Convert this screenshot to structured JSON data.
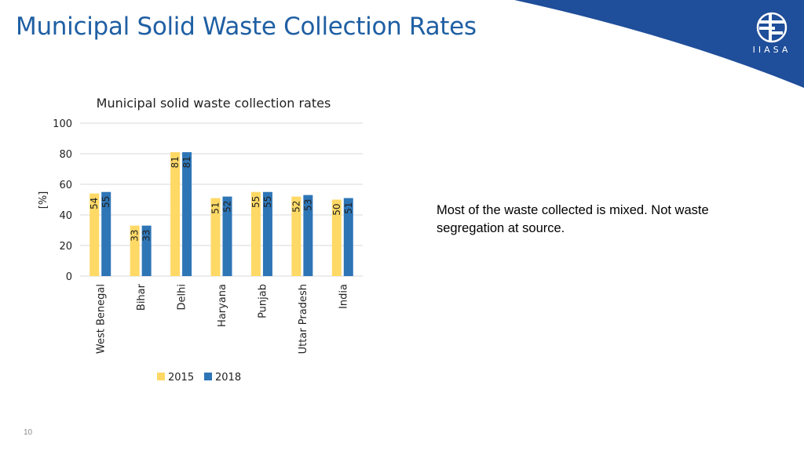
{
  "slide": {
    "title": "Municipal Solid Waste Collection Rates",
    "note": "Most of the waste collected is mixed. Not waste segregation at source.",
    "page_number": "10",
    "logo_text": "IIASA",
    "brand_color": "#1f5fa3"
  },
  "chart_data": {
    "type": "bar",
    "title": "Municipal solid waste collection rates",
    "ylabel": "[%]",
    "xlabel": "",
    "ylim": [
      0,
      100
    ],
    "yticks": [
      0,
      20,
      40,
      60,
      80,
      100
    ],
    "grid": true,
    "legend_position": "bottom",
    "categories": [
      "West Benegal",
      "Bihar",
      "Delhi",
      "Haryana",
      "Punjab",
      "Uttar Pradesh",
      "India"
    ],
    "series": [
      {
        "name": "2015",
        "color": "#ffd966",
        "values": [
          54,
          33,
          81,
          51,
          55,
          52,
          50
        ]
      },
      {
        "name": "2018",
        "color": "#2e75b6",
        "values": [
          55,
          33,
          81,
          52,
          55,
          53,
          51
        ]
      }
    ]
  }
}
